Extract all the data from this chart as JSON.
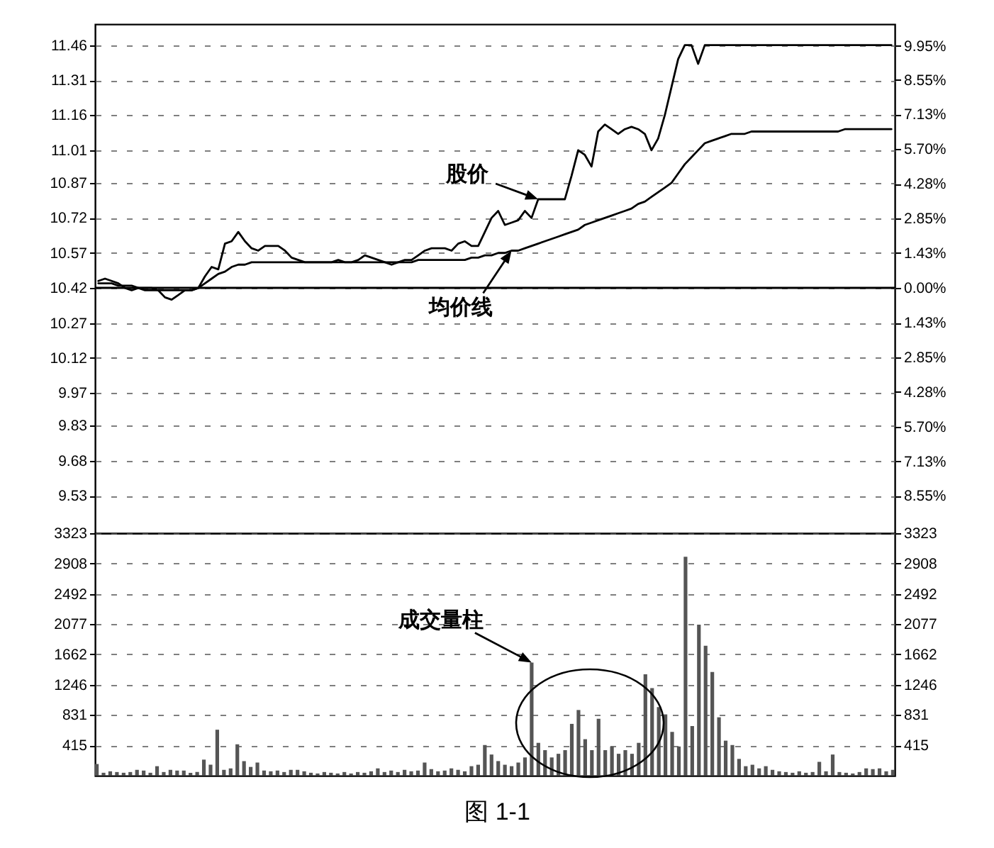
{
  "chart_data": [
    {
      "type": "line",
      "categories": [
        null,
        null,
        null,
        null,
        null,
        null,
        null,
        null,
        null,
        null,
        null,
        null,
        null,
        null,
        null,
        null,
        null,
        null,
        null,
        null,
        null,
        null,
        null,
        null,
        null,
        null,
        null,
        null,
        null,
        null,
        null,
        null,
        null,
        null,
        null,
        null,
        null,
        null,
        null,
        null,
        null,
        null,
        null,
        null,
        null,
        null,
        null,
        null,
        null,
        null,
        null,
        null,
        null,
        null,
        null,
        null,
        null,
        null,
        null,
        null,
        null,
        null,
        null,
        null,
        null,
        null,
        null,
        null,
        null,
        null,
        null,
        null,
        null,
        null,
        null,
        null,
        null,
        null,
        null,
        null,
        null,
        null,
        null,
        null,
        null,
        null,
        null,
        null,
        null,
        null,
        null,
        null,
        null,
        null,
        null,
        null,
        null,
        null,
        null,
        null,
        null,
        null,
        null,
        null,
        null,
        null,
        null,
        null,
        null,
        null,
        null,
        null,
        null,
        null,
        null,
        null,
        null,
        null,
        null,
        null
      ],
      "series": [
        {
          "name": "股价",
          "color": "#000000",
          "values": [
            10.45,
            10.46,
            10.45,
            10.44,
            10.42,
            10.41,
            10.42,
            10.41,
            10.41,
            10.41,
            10.38,
            10.37,
            10.39,
            10.41,
            10.41,
            10.42,
            10.47,
            10.51,
            10.5,
            10.61,
            10.62,
            10.66,
            10.62,
            10.59,
            10.58,
            10.6,
            10.6,
            10.6,
            10.58,
            10.55,
            10.54,
            10.53,
            10.53,
            10.53,
            10.53,
            10.53,
            10.54,
            10.53,
            10.53,
            10.54,
            10.56,
            10.55,
            10.54,
            10.53,
            10.52,
            10.53,
            10.54,
            10.54,
            10.56,
            10.58,
            10.59,
            10.59,
            10.59,
            10.58,
            10.61,
            10.62,
            10.6,
            10.6,
            10.66,
            10.72,
            10.75,
            10.69,
            10.7,
            10.71,
            10.75,
            10.72,
            10.8,
            10.8,
            10.8,
            10.8,
            10.8,
            10.9,
            11.01,
            10.99,
            10.94,
            11.09,
            11.12,
            11.1,
            11.08,
            11.1,
            11.11,
            11.1,
            11.08,
            11.01,
            11.06,
            11.16,
            11.28,
            11.4,
            11.46,
            11.46,
            11.38,
            11.46,
            11.46,
            11.46,
            11.46,
            11.46,
            11.46,
            11.46,
            11.46,
            11.46,
            11.46,
            11.46,
            11.46,
            11.46,
            11.46,
            11.46,
            11.46,
            11.46,
            11.46,
            11.46,
            11.46,
            11.46,
            11.46,
            11.46,
            11.46,
            11.46,
            11.46,
            11.46,
            11.46,
            11.46
          ]
        },
        {
          "name": "均价线",
          "color": "#000000",
          "values": [
            10.44,
            10.44,
            10.44,
            10.43,
            10.43,
            10.43,
            10.42,
            10.42,
            10.42,
            10.41,
            10.41,
            10.41,
            10.41,
            10.41,
            10.41,
            10.42,
            10.44,
            10.46,
            10.48,
            10.49,
            10.51,
            10.52,
            10.52,
            10.53,
            10.53,
            10.53,
            10.53,
            10.53,
            10.53,
            10.53,
            10.53,
            10.53,
            10.53,
            10.53,
            10.53,
            10.53,
            10.53,
            10.53,
            10.53,
            10.53,
            10.53,
            10.53,
            10.53,
            10.53,
            10.53,
            10.53,
            10.53,
            10.53,
            10.54,
            10.54,
            10.54,
            10.54,
            10.54,
            10.54,
            10.54,
            10.54,
            10.55,
            10.55,
            10.56,
            10.56,
            10.57,
            10.57,
            10.58,
            10.58,
            10.59,
            10.6,
            10.61,
            10.62,
            10.63,
            10.64,
            10.65,
            10.66,
            10.67,
            10.69,
            10.7,
            10.71,
            10.72,
            10.73,
            10.74,
            10.75,
            10.76,
            10.78,
            10.79,
            10.81,
            10.83,
            10.85,
            10.87,
            10.91,
            10.95,
            10.98,
            11.01,
            11.04,
            11.05,
            11.06,
            11.07,
            11.08,
            11.08,
            11.08,
            11.09,
            11.09,
            11.09,
            11.09,
            11.09,
            11.09,
            11.09,
            11.09,
            11.09,
            11.09,
            11.09,
            11.09,
            11.09,
            11.09,
            11.1,
            11.1,
            11.1,
            11.1,
            11.1,
            11.1,
            11.1,
            11.1
          ]
        }
      ],
      "ylim": [
        9.37,
        11.55
      ],
      "yticks": [
        9.53,
        9.68,
        9.83,
        9.97,
        10.12,
        10.27,
        10.42,
        10.57,
        10.72,
        10.87,
        11.01,
        11.16,
        11.31,
        11.46
      ],
      "y2lim": [
        -10.08,
        10.84
      ],
      "y2ticks": [
        {
          "value": -8.55,
          "label": "8.55%"
        },
        {
          "value": -7.13,
          "label": "7.13%"
        },
        {
          "value": -5.7,
          "label": "5.70%"
        },
        {
          "value": -4.28,
          "label": "4.28%"
        },
        {
          "value": -2.85,
          "label": "2.85%"
        },
        {
          "value": -1.43,
          "label": "1.43%"
        },
        {
          "value": 0,
          "label": "0.00%"
        },
        {
          "value": 1.43,
          "label": "1.43%"
        },
        {
          "value": 2.85,
          "label": "2.85%"
        },
        {
          "value": 4.28,
          "label": "4.28%"
        },
        {
          "value": 5.7,
          "label": "5.70%"
        },
        {
          "value": 7.13,
          "label": "7.13%"
        },
        {
          "value": 8.55,
          "label": "8.55%"
        },
        {
          "value": 9.95,
          "label": "9.95%"
        }
      ],
      "ref_lines": [
        {
          "axis": "y2",
          "value": 0
        }
      ],
      "grid": "y"
    },
    {
      "type": "bar",
      "categories": [
        null,
        null,
        null,
        null,
        null,
        null,
        null,
        null,
        null,
        null,
        null,
        null,
        null,
        null,
        null,
        null,
        null,
        null,
        null,
        null,
        null,
        null,
        null,
        null,
        null,
        null,
        null,
        null,
        null,
        null,
        null,
        null,
        null,
        null,
        null,
        null,
        null,
        null,
        null,
        null,
        null,
        null,
        null,
        null,
        null,
        null,
        null,
        null,
        null,
        null,
        null,
        null,
        null,
        null,
        null,
        null,
        null,
        null,
        null,
        null,
        null,
        null,
        null,
        null,
        null,
        null,
        null,
        null,
        null,
        null,
        null,
        null,
        null,
        null,
        null,
        null,
        null,
        null,
        null,
        null,
        null,
        null,
        null,
        null,
        null,
        null,
        null,
        null,
        null,
        null,
        null,
        null,
        null,
        null,
        null,
        null,
        null,
        null,
        null,
        null,
        null,
        null,
        null,
        null,
        null,
        null,
        null,
        null,
        null,
        null,
        null,
        null,
        null,
        null,
        null,
        null,
        null,
        null,
        null,
        null
      ],
      "series": [
        {
          "name": "成交量柱",
          "color": "#555555",
          "values": [
            160,
            40,
            60,
            50,
            40,
            50,
            80,
            70,
            40,
            130,
            50,
            80,
            70,
            70,
            40,
            50,
            220,
            150,
            630,
            80,
            100,
            430,
            200,
            120,
            180,
            70,
            60,
            70,
            50,
            80,
            80,
            60,
            40,
            30,
            50,
            40,
            30,
            50,
            30,
            50,
            40,
            60,
            100,
            50,
            70,
            50,
            80,
            60,
            70,
            180,
            90,
            60,
            70,
            100,
            80,
            60,
            130,
            150,
            420,
            290,
            200,
            150,
            130,
            180,
            250,
            1550,
            450,
            350,
            250,
            300,
            350,
            710,
            900,
            500,
            350,
            780,
            350,
            400,
            300,
            350,
            300,
            450,
            1390,
            1200,
            940,
            840,
            600,
            400,
            3000,
            680,
            2070,
            1780,
            1420,
            800,
            480,
            420,
            230,
            130,
            150,
            100,
            130,
            80,
            60,
            50,
            40,
            60,
            40,
            50,
            190,
            60,
            290,
            50,
            40,
            30,
            50,
            100,
            90,
            100,
            60,
            80
          ]
        }
      ],
      "ylim": [
        0,
        3323
      ],
      "yticks": [
        415,
        831,
        1246,
        1662,
        2077,
        2492,
        2908,
        3323
      ],
      "y2lim": [
        0,
        3323
      ],
      "y2ticks": [
        415,
        831,
        1246,
        1662,
        2077,
        2492,
        2908,
        3323
      ],
      "grid": "y",
      "annotations": [
        "图 1-1"
      ]
    }
  ]
}
